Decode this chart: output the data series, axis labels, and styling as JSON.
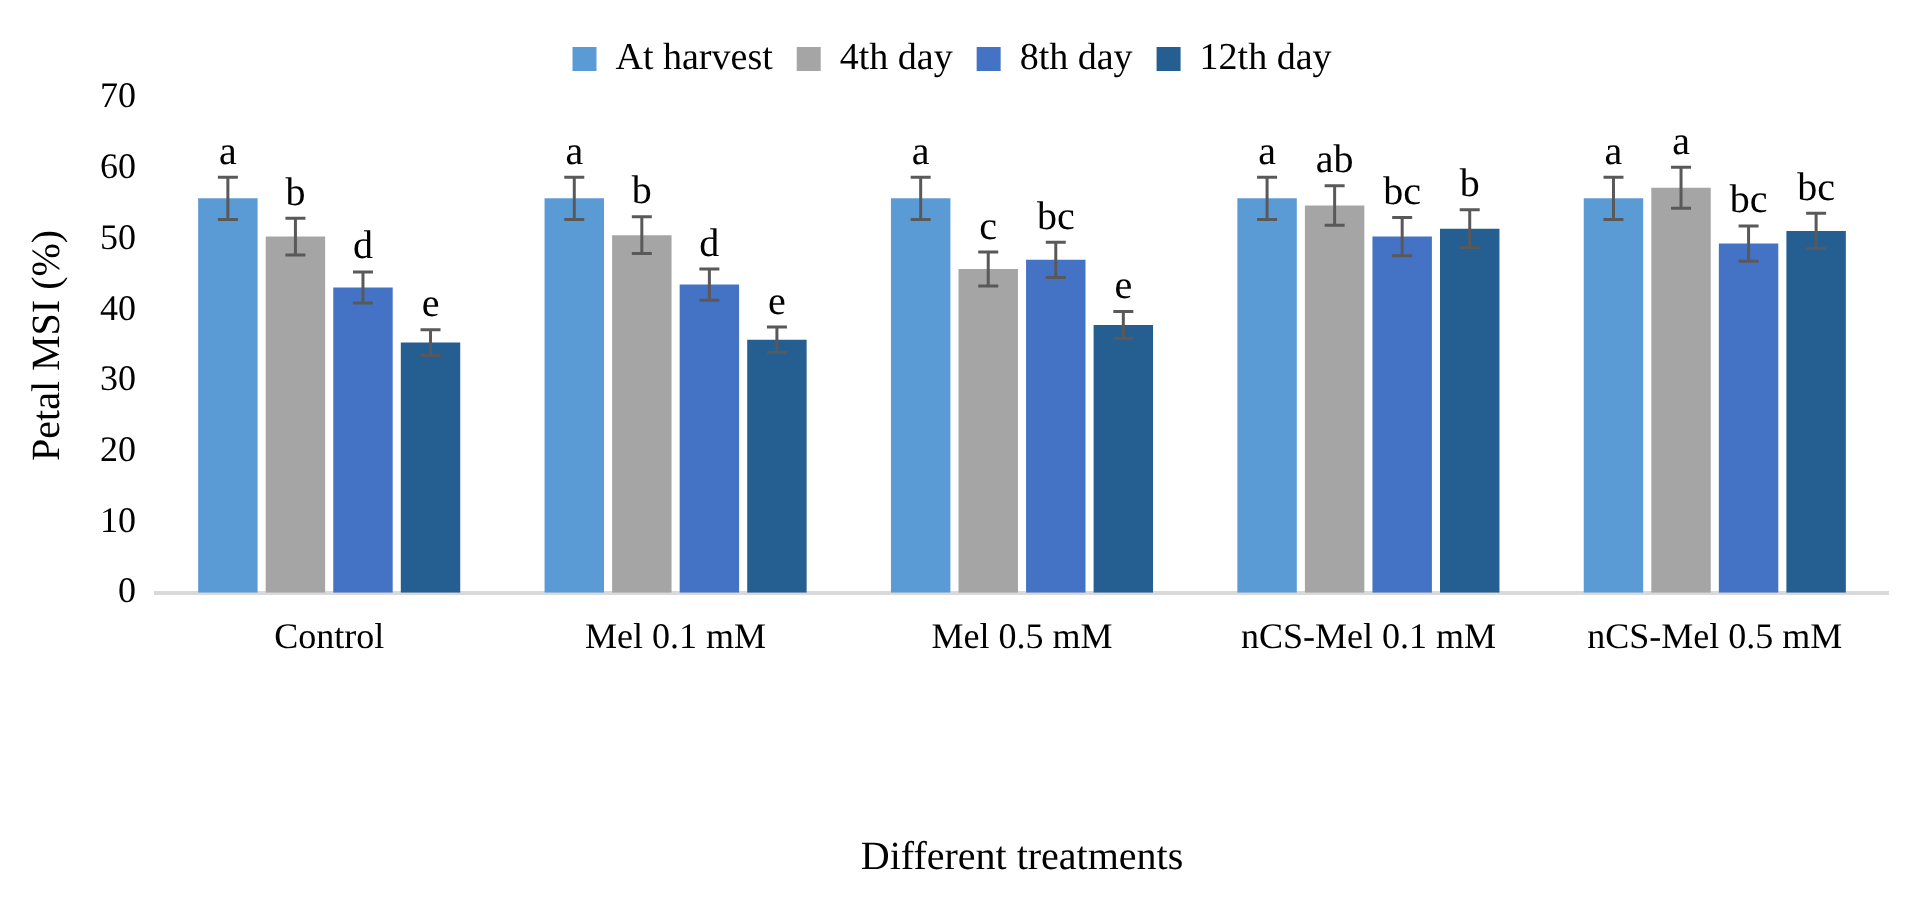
{
  "chart_data": {
    "type": "bar",
    "xlabel": "Different treatments",
    "ylabel": "Petal MSI (%)",
    "categories": [
      "Control",
      "Mel 0.1 mM",
      "Mel 0.5 mM",
      "nCS-Mel 0.1 mM",
      "nCS-Mel 0.5 mM"
    ],
    "series": [
      {
        "name": "At harvest",
        "color": "#5b9bd5",
        "values": [
          55.8,
          55.8,
          55.8,
          55.8,
          55.8
        ],
        "errors": [
          3,
          3,
          3,
          3,
          3
        ],
        "value_labels": [
          "a",
          "a",
          "a",
          "a",
          "a"
        ]
      },
      {
        "name": "4th day",
        "color": "#a5a5a5",
        "values": [
          50.4,
          50.6,
          45.8,
          54.8,
          57.3
        ],
        "errors": [
          2.6,
          2.6,
          2.4,
          2.8,
          2.9
        ],
        "value_labels": [
          "b",
          "b",
          "c",
          "ab",
          "a"
        ]
      },
      {
        "name": "8th day",
        "color": "#4472c4",
        "values": [
          43.2,
          43.6,
          47.1,
          50.4,
          49.4
        ],
        "errors": [
          2.2,
          2.2,
          2.5,
          2.7,
          2.5
        ],
        "value_labels": [
          "d",
          "d",
          "bc",
          "bc",
          "bc"
        ]
      },
      {
        "name": "12th day",
        "color": "#255e91",
        "values": [
          35.4,
          35.8,
          37.9,
          51.5,
          51.2
        ],
        "errors": [
          1.8,
          1.8,
          1.9,
          2.7,
          2.5
        ],
        "value_labels": [
          "e",
          "e",
          "e",
          "b",
          "bc"
        ]
      }
    ],
    "ylim": [
      0,
      70
    ],
    "yticks": [
      0,
      10,
      20,
      30,
      40,
      50,
      60,
      70
    ],
    "grid": false,
    "legend": "top"
  }
}
